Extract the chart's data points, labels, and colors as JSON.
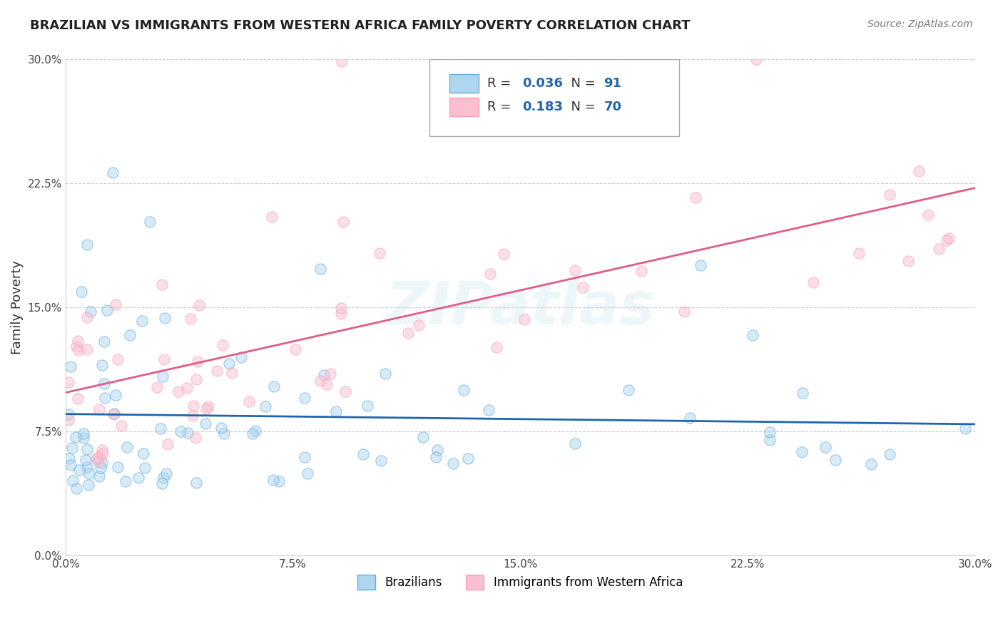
{
  "title": "BRAZILIAN VS IMMIGRANTS FROM WESTERN AFRICA FAMILY POVERTY CORRELATION CHART",
  "source": "Source: ZipAtlas.com",
  "ylabel": "Family Poverty",
  "x_ticks": [
    0.0,
    0.075,
    0.15,
    0.225,
    0.3
  ],
  "x_tick_labels": [
    "0.0%",
    "7.5%",
    "15.0%",
    "22.5%",
    "30.0%"
  ],
  "y_ticks": [
    0.0,
    0.075,
    0.15,
    0.225,
    0.3
  ],
  "y_tick_labels": [
    "0.0%",
    "7.5%",
    "15.0%",
    "22.5%",
    "30.0%"
  ],
  "xlim": [
    0.0,
    0.3
  ],
  "ylim": [
    0.0,
    0.3
  ],
  "legend_labels": [
    "Brazilians",
    "Immigrants from Western Africa"
  ],
  "legend_R": [
    0.036,
    0.183
  ],
  "legend_N": [
    91,
    70
  ],
  "blue_edge_color": "#6baed6",
  "pink_edge_color": "#fa9fb5",
  "blue_line_color": "#2166ac",
  "pink_line_color": "#e05c8a",
  "blue_scatter_color": "#aed6f1",
  "pink_scatter_color": "#f9c0d0",
  "background_color": "#ffffff",
  "grid_color": "#cccccc",
  "title_color": "#222222",
  "source_color": "#777777",
  "marker_size": 120,
  "marker_alpha": 0.5,
  "watermark_text": "ZIPatlas",
  "legend_R_color": "#2166ac",
  "legend_N_color": "#2166ac"
}
